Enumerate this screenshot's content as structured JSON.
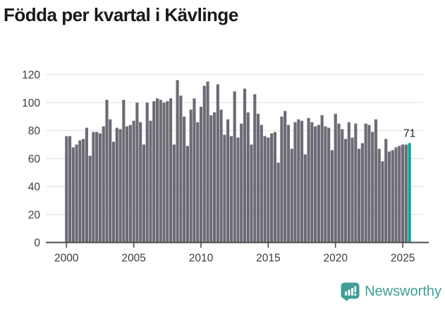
{
  "title": "Födda per kvartal i Kävlinge",
  "annotation": {
    "value_label": "71"
  },
  "branding": {
    "name": "Newsworthy"
  },
  "colors": {
    "bar": "#6c6b75",
    "highlight": "#00a59c",
    "grid": "#e4e4e4",
    "axis": "#4d4d4d",
    "tick_text": "#3c3c3c",
    "title_text": "#191919",
    "annotation_text": "#222222",
    "brand_teal": "#3f9e97"
  },
  "chart_data": {
    "type": "bar",
    "title": "Födda per kvartal i Kävlinge",
    "x_unit": "quarter",
    "x_start": "2000-Q1",
    "x_end": "2025-Q3",
    "x_tick_labels": [
      "2000",
      "2005",
      "2010",
      "2015",
      "2020",
      "2025"
    ],
    "y_tick_labels": [
      "0",
      "20",
      "40",
      "60",
      "80",
      "100",
      "120"
    ],
    "ylim": [
      0,
      120
    ],
    "grid": "horizontal",
    "legend": "none",
    "highlight_last_bar": true,
    "last_value_label": "71",
    "values": [
      76,
      76,
      68,
      70,
      73,
      74,
      82,
      62,
      79,
      79,
      78,
      83,
      102,
      88,
      72,
      82,
      81,
      102,
      83,
      84,
      87,
      100,
      86,
      70,
      100,
      87,
      101,
      103,
      102,
      100,
      101,
      103,
      70,
      116,
      105,
      90,
      69,
      95,
      103,
      86,
      97,
      112,
      115,
      91,
      93,
      113,
      95,
      77,
      88,
      76,
      108,
      75,
      85,
      110,
      93,
      70,
      106,
      92,
      84,
      76,
      75,
      78,
      79,
      57,
      90,
      94,
      84,
      67,
      86,
      88,
      87,
      63,
      89,
      86,
      83,
      84,
      91,
      83,
      82,
      66,
      92,
      85,
      81,
      74,
      86,
      75,
      85,
      67,
      71,
      85,
      84,
      79,
      88,
      67,
      58,
      74,
      65,
      66,
      68,
      69,
      70,
      70,
      71
    ]
  }
}
